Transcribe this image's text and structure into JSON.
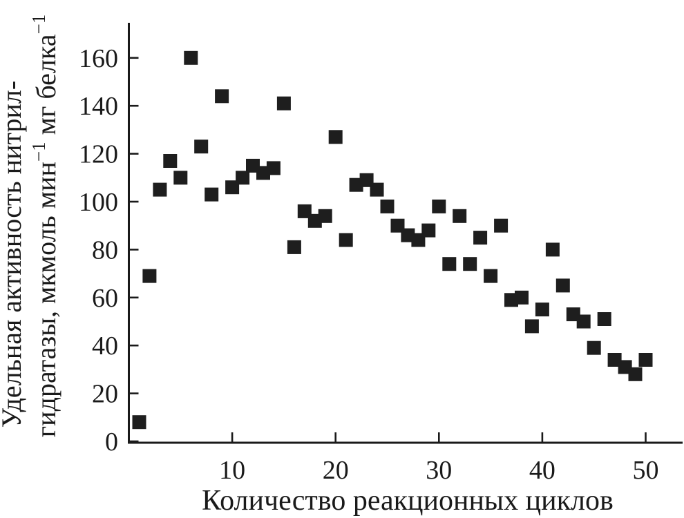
{
  "figure": {
    "background": "#ffffff",
    "axis_color": "#1a1a1a",
    "text_color": "#1a1a1a"
  },
  "chart_data": {
    "type": "scatter",
    "title": "",
    "xlabel": "Количество реакционных циклов",
    "ylabel_lines": [
      [
        {
          "t": "Удельная активность нитрил-"
        }
      ],
      [
        {
          "t": "гидратазы, мкмоль мин"
        },
        {
          "t": "−1",
          "sup": true
        },
        {
          "t": " мг белка"
        },
        {
          "t": "−1",
          "sup": true
        }
      ]
    ],
    "xticks": [
      10,
      20,
      30,
      40,
      50
    ],
    "yticks": [
      0,
      20,
      40,
      60,
      80,
      100,
      120,
      140,
      160
    ],
    "xlim": [
      0,
      53.7
    ],
    "ylim": [
      0,
      175
    ],
    "grid": false,
    "legend": false,
    "series": [
      {
        "name": "удельная активность",
        "marker": "filled-square",
        "marker_size": 20,
        "color": "#1e1e1e",
        "x": [
          1,
          2,
          3,
          4,
          5,
          6,
          7,
          8,
          9,
          10,
          11,
          12,
          13,
          14,
          15,
          16,
          17,
          18,
          19,
          20,
          21,
          22,
          23,
          24,
          25,
          26,
          27,
          28,
          29,
          30,
          31,
          32,
          33,
          34,
          35,
          36,
          37,
          38,
          39,
          40,
          41,
          42,
          43,
          44,
          45,
          46,
          47,
          48,
          49,
          50
        ],
        "y": [
          8,
          69,
          105,
          117,
          110,
          160,
          123,
          103,
          144,
          106,
          110,
          115,
          112,
          114,
          141,
          81,
          96,
          92,
          94,
          127,
          84,
          107,
          109,
          105,
          98,
          90,
          86,
          84,
          88,
          98,
          74,
          94,
          74,
          85,
          69,
          90,
          59,
          60,
          48,
          55,
          80,
          65,
          53,
          50,
          39,
          51,
          34,
          31,
          28,
          34
        ]
      }
    ]
  }
}
